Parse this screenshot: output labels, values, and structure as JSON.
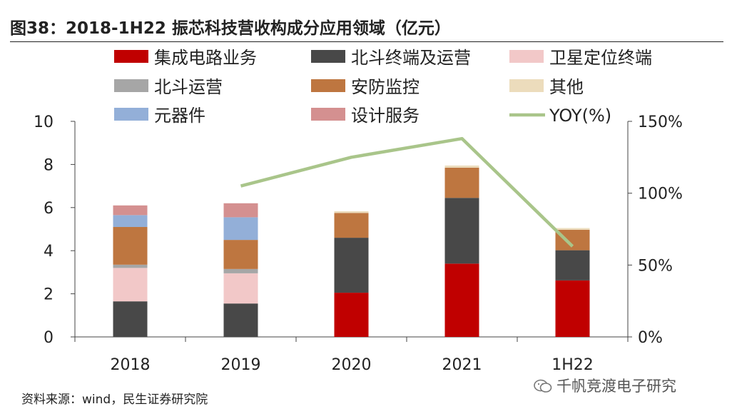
{
  "title": "图38：2018-1H22 振芯科技营收构成分应用领域（亿元）",
  "source": "资料来源：wind，民生证券研究院",
  "watermark": "千帆竞渡电子研究",
  "chart_data": {
    "type": "bar",
    "stacked": true,
    "categories": [
      "2018",
      "2019",
      "2020",
      "2021",
      "1H22"
    ],
    "y_left": {
      "min": 0,
      "max": 10,
      "ticks": [
        "0",
        "2",
        "4",
        "6",
        "8",
        "10"
      ]
    },
    "y_right": {
      "min": 0,
      "max": 150,
      "ticks": [
        "0%",
        "50%",
        "100%",
        "150%"
      ]
    },
    "series": [
      {
        "name": "集成电路业务",
        "color": "#c00000",
        "values": [
          0,
          0,
          2.05,
          3.4,
          2.62
        ]
      },
      {
        "name": "北斗终端及运营",
        "color": "#484848",
        "values": [
          1.65,
          1.55,
          2.55,
          3.05,
          1.4
        ]
      },
      {
        "name": "卫星定位终端",
        "color": "#f2c8c8",
        "values": [
          1.55,
          1.4,
          0,
          0,
          0
        ]
      },
      {
        "name": "北斗运营",
        "color": "#a6a6a6",
        "values": [
          0.15,
          0.2,
          0,
          0,
          0
        ]
      },
      {
        "name": "安防监控",
        "color": "#be7640",
        "values": [
          1.75,
          1.35,
          1.15,
          1.4,
          0.95
        ]
      },
      {
        "name": "其他",
        "color": "#ecdcbc",
        "values": [
          0,
          0,
          0.08,
          0.1,
          0.08
        ]
      },
      {
        "name": "元器件",
        "color": "#93afd8",
        "values": [
          0.55,
          1.05,
          0,
          0,
          0
        ]
      },
      {
        "name": "设计服务",
        "color": "#d49090",
        "values": [
          0.45,
          0.65,
          0,
          0,
          0
        ]
      }
    ],
    "line": {
      "name": "YOY(%)",
      "color": "#a9c58a",
      "axis": "right",
      "values": [
        null,
        105,
        125,
        138,
        63
      ]
    },
    "legend": {
      "position": "top",
      "columns": 3
    }
  }
}
